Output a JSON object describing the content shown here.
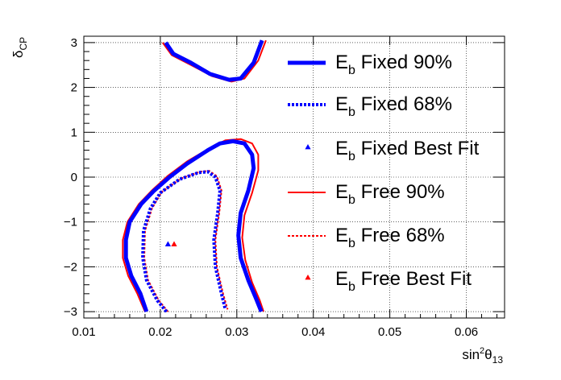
{
  "chart_data": {
    "type": "line",
    "title": "",
    "xlabel_base": "sin",
    "xlabel_sup": "2",
    "xlabel_greek": "θ",
    "xlabel_sub": "13",
    "ylabel_greek": "δ",
    "ylabel_sub": "CP",
    "xlim": [
      0.01,
      0.065
    ],
    "ylim": [
      -3.1416,
      3.1416
    ],
    "grid": true,
    "legend_position": "right",
    "xticks": [
      {
        "v": 0.01,
        "label": "0.01"
      },
      {
        "v": 0.02,
        "label": "0.02"
      },
      {
        "v": 0.03,
        "label": "0.03"
      },
      {
        "v": 0.04,
        "label": "0.04"
      },
      {
        "v": 0.05,
        "label": "0.05"
      },
      {
        "v": 0.06,
        "label": "0.06"
      }
    ],
    "yticks": [
      {
        "v": 3,
        "label": "3"
      },
      {
        "v": 2,
        "label": "2"
      },
      {
        "v": 1,
        "label": "1"
      },
      {
        "v": 0,
        "label": "0"
      },
      {
        "v": -1,
        "label": "−1"
      },
      {
        "v": -2,
        "label": "−2"
      },
      {
        "v": -3,
        "label": "−3"
      }
    ],
    "series": [
      {
        "name_main": "E",
        "name_sub": "b",
        "name_rest": " Fixed 90%",
        "kind": "line",
        "color": "#0000ff",
        "style": "solid",
        "width": 5,
        "paths": [
          [
            [
              0.0182,
              -3.0
            ],
            [
              0.0174,
              -2.6
            ],
            [
              0.0162,
              -2.2
            ],
            [
              0.0155,
              -1.8
            ],
            [
              0.0155,
              -1.4
            ],
            [
              0.016,
              -1.0
            ],
            [
              0.0175,
              -0.6
            ],
            [
              0.0192,
              -0.3
            ],
            [
              0.0212,
              0.0
            ],
            [
              0.0235,
              0.3
            ],
            [
              0.0262,
              0.6
            ],
            [
              0.0278,
              0.75
            ],
            [
              0.0295,
              0.8
            ],
            [
              0.031,
              0.75
            ],
            [
              0.032,
              0.5
            ],
            [
              0.0322,
              0.2
            ],
            [
              0.0315,
              -0.3
            ],
            [
              0.0305,
              -0.8
            ],
            [
              0.0302,
              -1.3
            ],
            [
              0.0305,
              -1.8
            ],
            [
              0.0315,
              -2.3
            ],
            [
              0.0325,
              -2.7
            ],
            [
              0.0332,
              -3.0
            ]
          ],
          [
            [
              0.0207,
              3.0
            ],
            [
              0.0217,
              2.75
            ],
            [
              0.024,
              2.55
            ],
            [
              0.0265,
              2.3
            ],
            [
              0.029,
              2.17
            ],
            [
              0.0305,
              2.2
            ],
            [
              0.0322,
              2.55
            ],
            [
              0.0333,
              3.05
            ]
          ]
        ]
      },
      {
        "name_main": "E",
        "name_sub": "b",
        "name_rest": " Fixed 68%",
        "kind": "line",
        "color": "#0000ff",
        "style": "dotted",
        "width": 4,
        "paths": [
          [
            [
              0.0208,
              -3.0
            ],
            [
              0.0196,
              -2.75
            ],
            [
              0.0182,
              -2.3
            ],
            [
              0.0177,
              -1.8
            ],
            [
              0.0178,
              -1.2
            ],
            [
              0.0187,
              -0.7
            ],
            [
              0.02,
              -0.35
            ],
            [
              0.0225,
              -0.05
            ],
            [
              0.025,
              0.1
            ],
            [
              0.0262,
              0.12
            ],
            [
              0.0272,
              0.0
            ],
            [
              0.0278,
              -0.3
            ],
            [
              0.0275,
              -0.8
            ],
            [
              0.027,
              -1.4
            ],
            [
              0.0272,
              -2.0
            ],
            [
              0.028,
              -2.6
            ],
            [
              0.0285,
              -2.95
            ]
          ]
        ]
      },
      {
        "name_main": "E",
        "name_sub": "b",
        "name_rest": " Fixed Best Fit",
        "kind": "marker",
        "color": "#0000ff",
        "points": [
          [
            0.021,
            -1.5
          ]
        ]
      },
      {
        "name_main": "E",
        "name_sub": "b",
        "name_rest": " Free 90%",
        "kind": "line",
        "color": "#ff0000",
        "style": "solid",
        "width": 2,
        "paths": [
          [
            [
              0.018,
              -3.0
            ],
            [
              0.017,
              -2.6
            ],
            [
              0.0158,
              -2.2
            ],
            [
              0.0151,
              -1.8
            ],
            [
              0.0151,
              -1.4
            ],
            [
              0.0157,
              -1.0
            ],
            [
              0.0172,
              -0.6
            ],
            [
              0.019,
              -0.28
            ],
            [
              0.021,
              0.03
            ],
            [
              0.0235,
              0.35
            ],
            [
              0.0265,
              0.65
            ],
            [
              0.0285,
              0.82
            ],
            [
              0.0305,
              0.85
            ],
            [
              0.032,
              0.75
            ],
            [
              0.0328,
              0.5
            ],
            [
              0.0328,
              0.15
            ],
            [
              0.032,
              -0.35
            ],
            [
              0.031,
              -0.85
            ],
            [
              0.0307,
              -1.35
            ],
            [
              0.0311,
              -1.85
            ],
            [
              0.032,
              -2.35
            ],
            [
              0.033,
              -2.75
            ],
            [
              0.0335,
              -3.0
            ]
          ],
          [
            [
              0.0203,
              3.0
            ],
            [
              0.0215,
              2.72
            ],
            [
              0.024,
              2.5
            ],
            [
              0.0268,
              2.25
            ],
            [
              0.0293,
              2.13
            ],
            [
              0.031,
              2.2
            ],
            [
              0.0328,
              2.6
            ],
            [
              0.0338,
              3.05
            ]
          ]
        ]
      },
      {
        "name_main": "E",
        "name_sub": "b",
        "name_rest": " Free 68%",
        "kind": "line",
        "color": "#ff0000",
        "style": "dotted",
        "width": 2,
        "paths": [
          [
            [
              0.021,
              -3.0
            ],
            [
              0.0198,
              -2.75
            ],
            [
              0.0184,
              -2.3
            ],
            [
              0.0179,
              -1.8
            ],
            [
              0.018,
              -1.2
            ],
            [
              0.0189,
              -0.7
            ],
            [
              0.0202,
              -0.33
            ],
            [
              0.0227,
              -0.03
            ],
            [
              0.0252,
              0.12
            ],
            [
              0.0264,
              0.14
            ],
            [
              0.0274,
              0.02
            ],
            [
              0.028,
              -0.3
            ],
            [
              0.0277,
              -0.8
            ],
            [
              0.0272,
              -1.4
            ],
            [
              0.0274,
              -2.0
            ],
            [
              0.0282,
              -2.6
            ],
            [
              0.0288,
              -2.95
            ]
          ]
        ]
      },
      {
        "name_main": "E",
        "name_sub": "b",
        "name_rest": " Free Best Fit",
        "kind": "marker",
        "color": "#ff0000",
        "points": [
          [
            0.0218,
            -1.5
          ]
        ]
      }
    ]
  }
}
